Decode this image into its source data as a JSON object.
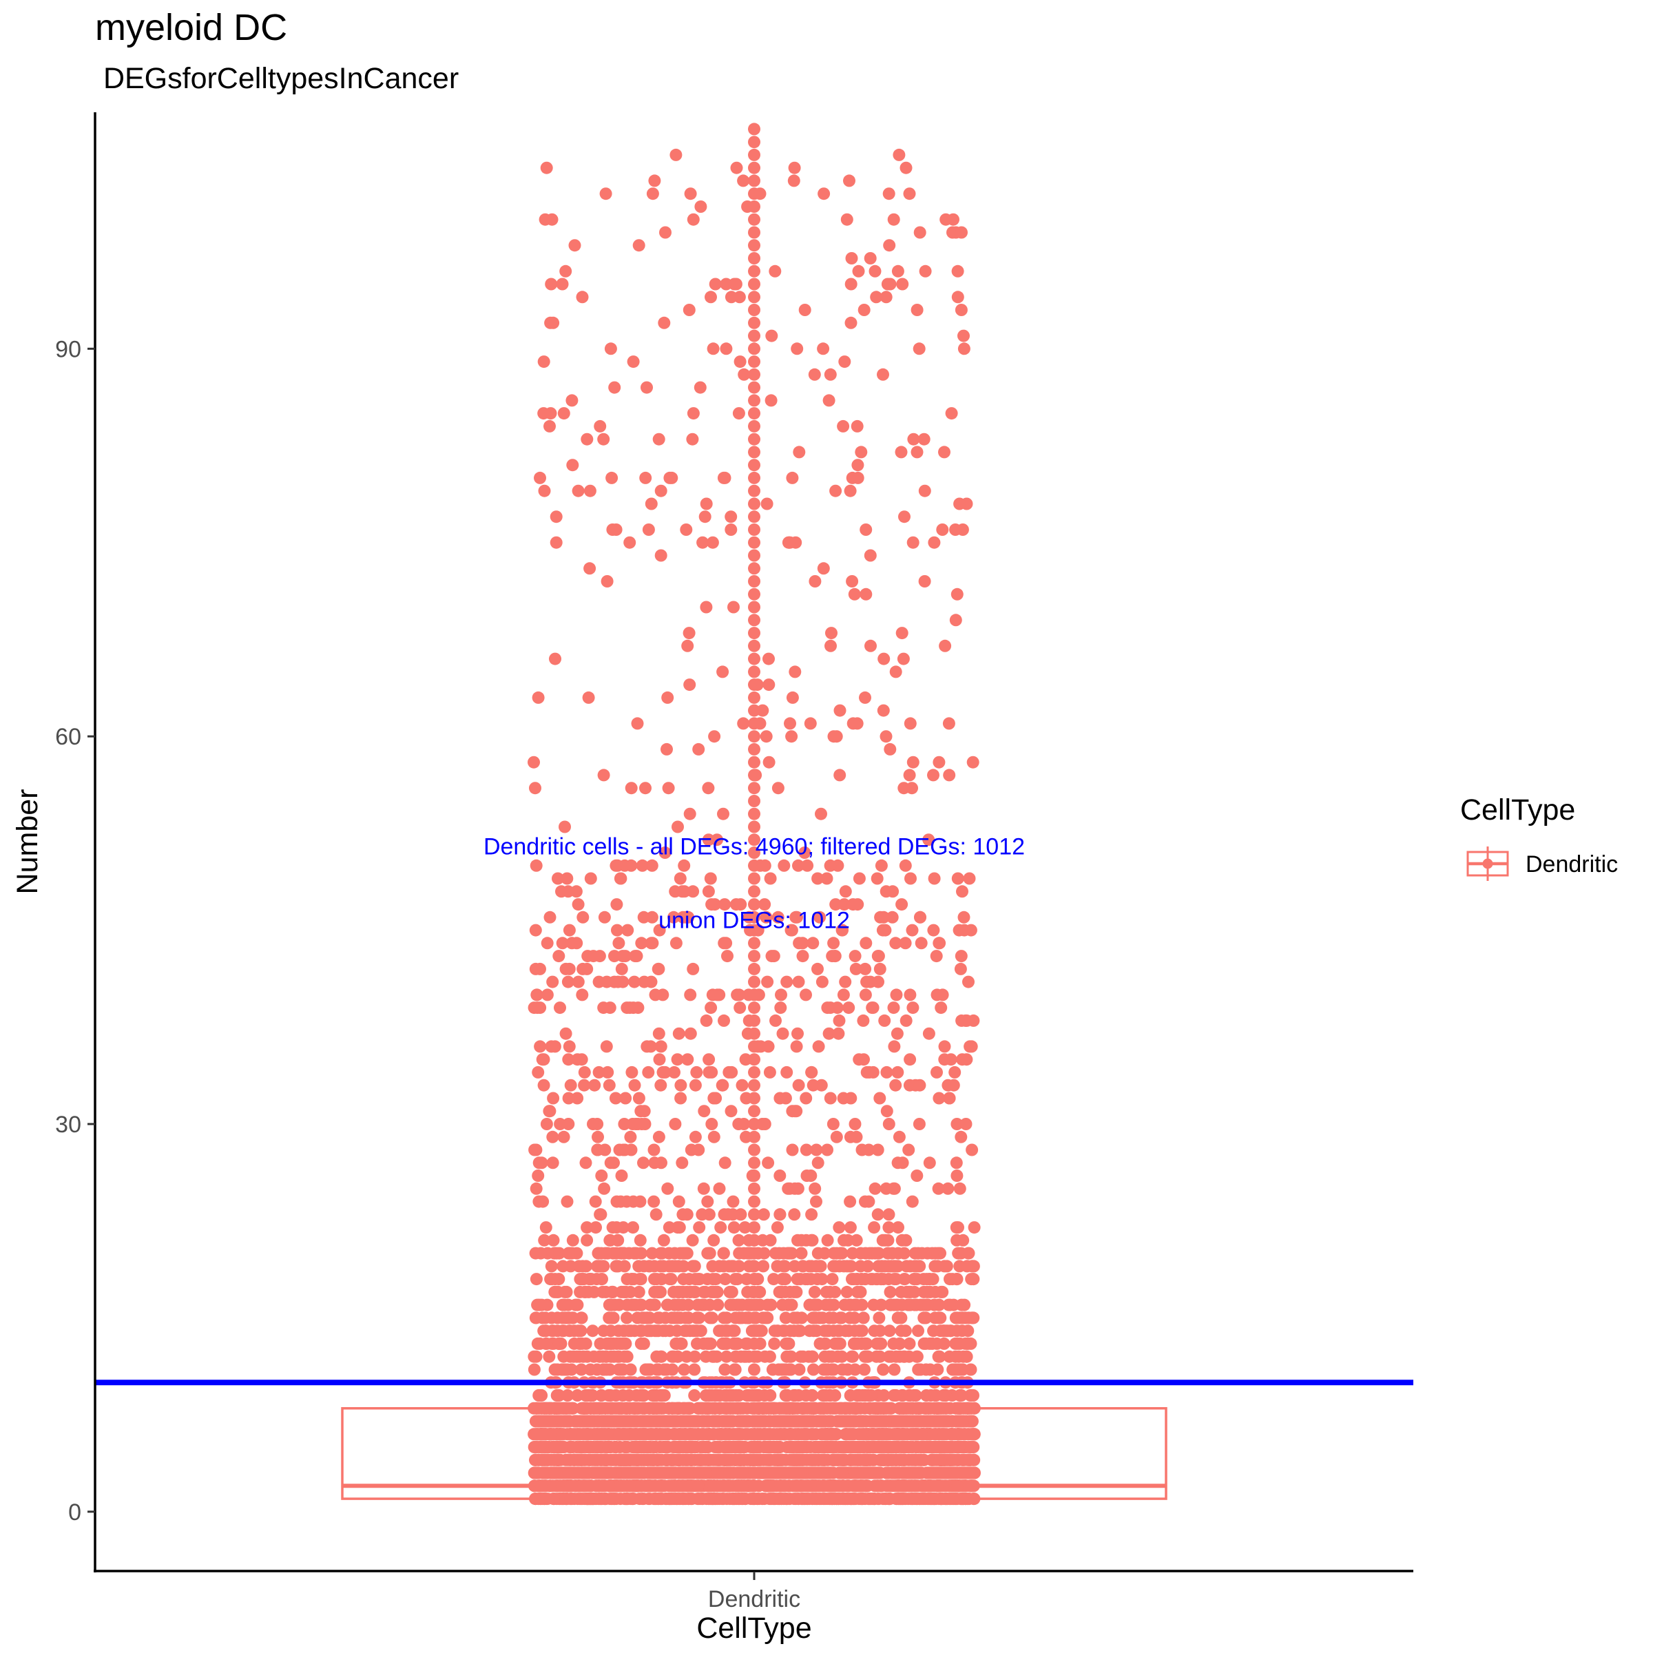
{
  "chart_data": {
    "type": "box+jitter",
    "title": "myeloid DC",
    "subtitle": " DEGsforCelltypesInCancer",
    "xlabel": "CellType",
    "ylabel": "Number",
    "categories": [
      "Dendritic"
    ],
    "y_ticks": [
      0,
      30,
      60,
      90
    ],
    "ylim": [
      -4.7,
      108.3
    ],
    "grid": false,
    "legend": {
      "title": "CellType",
      "entries": [
        "Dendritic"
      ],
      "position": "right"
    },
    "colors": {
      "series": "#F8766D",
      "hline": "#0000FF",
      "annotation": "#0000FF",
      "axis": "#000000"
    },
    "box": {
      "category": "Dendritic",
      "q1": 1,
      "median": 2,
      "q3": 8,
      "lower_whisker": 1,
      "upper_whisker": 8
    },
    "hline": {
      "y": 10,
      "color": "#0000FF"
    },
    "annotations": [
      {
        "text": "Dendritic cells - all DEGs: 4960; filtered DEGs: 1012",
        "x": "Dendritic",
        "y": 51.5
      },
      {
        "text": "union DEGs: 1012",
        "x": "Dendritic",
        "y": 45.8
      }
    ],
    "points": {
      "total": 4960,
      "distribution_note": "",
      "jitter_width": 0.35
    }
  }
}
